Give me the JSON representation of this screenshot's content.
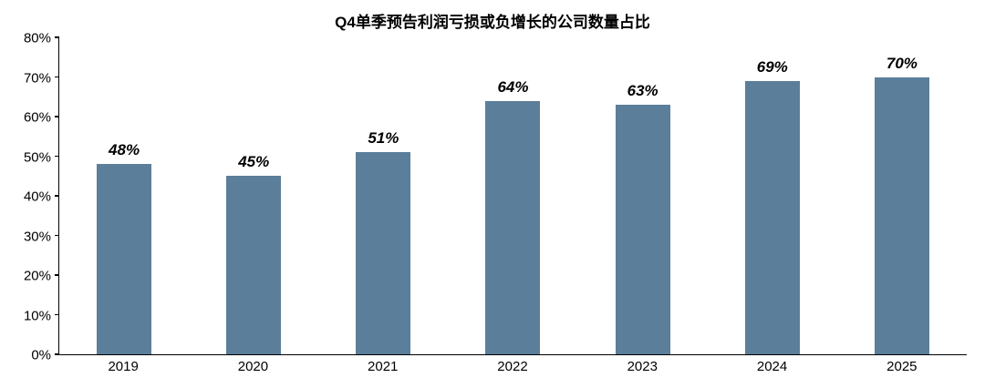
{
  "chart_data": {
    "type": "bar",
    "title": "Q4单季预告利润亏损或负增长的公司数量占比",
    "categories": [
      "2019",
      "2020",
      "2021",
      "2022",
      "2023",
      "2024",
      "2025"
    ],
    "values": [
      48,
      45,
      51,
      64,
      63,
      69,
      70
    ],
    "data_labels": [
      "48%",
      "45%",
      "51%",
      "64%",
      "63%",
      "69%",
      "70%"
    ],
    "xlabel": "",
    "ylabel": "",
    "ylim": [
      0,
      80
    ],
    "y_tick_values": [
      0,
      10,
      20,
      30,
      40,
      50,
      60,
      70,
      80
    ],
    "y_tick_labels": [
      "0%",
      "10%",
      "20%",
      "30%",
      "40%",
      "50%",
      "60%",
      "70%",
      "80%"
    ],
    "bar_color": "#5B7E9A",
    "axis_color": "#000000",
    "grid": false,
    "legend": false,
    "data_label_style": "bold italic"
  }
}
